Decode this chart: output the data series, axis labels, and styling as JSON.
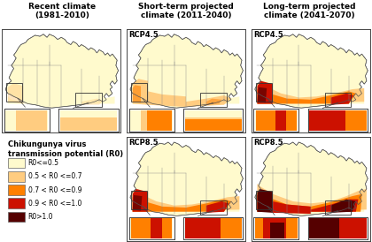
{
  "title_col1": "Recent climate\n(1981-2010)",
  "title_col2": "Short-term projected\nclimate (2011-2040)",
  "title_col3": "Long-term projected\nclimate (2041-2070)",
  "label_rcp45": "RCP4.5",
  "label_rcp85": "RCP8.5",
  "legend_title_line1": "Chikungunya virus",
  "legend_title_line2": "transmission potential (R0)",
  "legend_labels": [
    "R0<=0.5",
    "0.5 < R0 <=0.7",
    "0.7 < R0 <=0.9",
    "0.9 < R0 <=1.0",
    "R0>1.0"
  ],
  "legend_colors": [
    "#FFFACD",
    "#FFCC80",
    "#FF8000",
    "#CC1100",
    "#550000"
  ],
  "bg_color": "#FFFFFF",
  "panel_bg": "#FFFFFF",
  "title_fontsize": 6.5,
  "label_fontsize": 6,
  "legend_fontsize": 5.5,
  "legend_title_fontsize": 6
}
